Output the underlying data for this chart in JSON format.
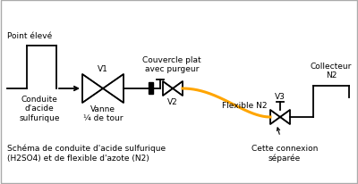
{
  "bg_color": "#ffffff",
  "border_color": "#aaaaaa",
  "line_color": "#000000",
  "orange_color": "#FFA500",
  "title_text": "Schéma de conduite d'acide sulfurique\n(H2SO4) et de flexible d'azote (N2)",
  "labels": {
    "point_eleve": "Point élevé",
    "conduite": "Conduite\nd'acide\nsulfurique",
    "v1": "V1",
    "vanne": "Vanne\n¼ de tour",
    "couvercle": "Couvercle plat\navec purgeur",
    "v2": "V2",
    "flexible": "Flexible N2",
    "collecteur": "Collecteur\nN2",
    "v3": "V3",
    "connexion": "Cette connexion\nséparée"
  },
  "figsize": [
    4.0,
    2.07
  ],
  "dpi": 100
}
